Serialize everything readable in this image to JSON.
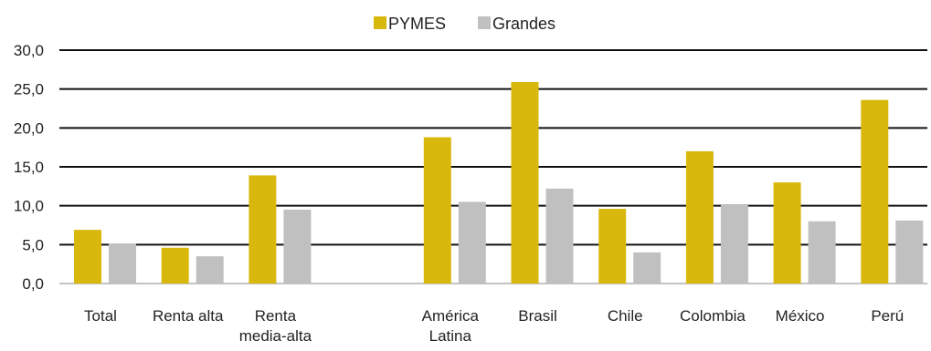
{
  "chart_data": {
    "type": "bar",
    "categories": [
      [
        "Total"
      ],
      [
        "Renta alta"
      ],
      [
        "Renta",
        "media-alta"
      ],
      [],
      [
        "América",
        "Latina"
      ],
      [
        "Brasil"
      ],
      [
        "Chile"
      ],
      [
        "Colombia"
      ],
      [
        "México"
      ],
      [
        "Perú"
      ]
    ],
    "series": [
      {
        "name": "PYMES",
        "color": "#D9B80E",
        "values": [
          6.9,
          4.6,
          13.9,
          null,
          18.8,
          25.9,
          9.6,
          17.0,
          13.0,
          23.6
        ]
      },
      {
        "name": "Grandes",
        "color": "#C0C0C0",
        "values": [
          5.1,
          3.5,
          9.5,
          null,
          10.5,
          12.2,
          4.0,
          10.1,
          8.0,
          8.1
        ]
      }
    ],
    "yticks": [
      "0,0",
      "5,0",
      "10,0",
      "15,0",
      "20,0",
      "25,0",
      "30,0"
    ],
    "ylim": [
      0,
      30
    ],
    "grid": true,
    "legend_position": "top-center",
    "title": "",
    "xlabel": "",
    "ylabel": ""
  }
}
